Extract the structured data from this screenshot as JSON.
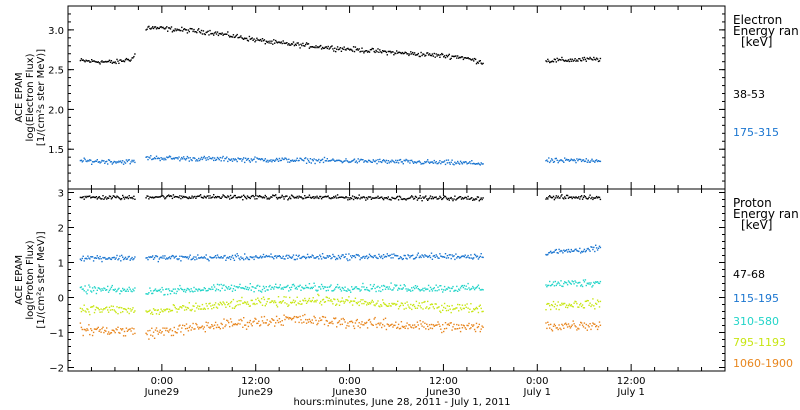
{
  "chart_data": [
    {
      "type": "scatter",
      "ylabel_lines": [
        "ACE EPAM",
        "log(Electron Flux)",
        "[1/(cm²s ster MeV)]"
      ],
      "legend_title_lines": [
        "Electron",
        "Energy ran",
        "[keV]"
      ],
      "ylim": [
        1.0,
        3.3
      ],
      "yticks": [
        1.5,
        2.0,
        2.5,
        3.0
      ],
      "ytick_labels": [
        "1.5",
        "2.0",
        "2.5",
        "3.0"
      ],
      "grid": false,
      "legend_position": "right",
      "gaps": [
        [
          -3.5,
          -2.2
        ],
        [
          41.0,
          49.0
        ]
      ],
      "series": [
        {
          "name": "38-53",
          "color": "#000000",
          "points": [
            [
              -10.5,
              2.62
            ],
            [
              -6,
              2.6
            ],
            [
              -3.8,
              2.65
            ],
            [
              -1.9,
              3.04
            ],
            [
              6,
              2.98
            ],
            [
              14,
              2.85
            ],
            [
              22,
              2.78
            ],
            [
              30,
              2.72
            ],
            [
              38,
              2.67
            ],
            [
              41,
              2.6
            ],
            [
              49,
              2.62
            ],
            [
              56,
              2.64
            ]
          ]
        },
        {
          "name": "175-315",
          "color": "#1a75d0",
          "points": [
            [
              -10.5,
              1.36
            ],
            [
              -3.8,
              1.35
            ],
            [
              -1.9,
              1.4
            ],
            [
              10,
              1.38
            ],
            [
              25,
              1.36
            ],
            [
              41,
              1.33
            ],
            [
              49,
              1.36
            ],
            [
              56,
              1.37
            ]
          ]
        }
      ]
    },
    {
      "type": "scatter",
      "ylabel_lines": [
        "ACE EPAM",
        "log(Proton Flux)",
        "[1/(cm²s ster MeV)]"
      ],
      "legend_title_lines": [
        "Proton",
        "Energy ran",
        "[keV]"
      ],
      "ylim": [
        -2.1,
        3.1
      ],
      "yticks": [
        -2,
        -1,
        0,
        1,
        2,
        3
      ],
      "ytick_labels": [
        "−2",
        "−1",
        "0",
        "1",
        "2",
        "3"
      ],
      "grid": false,
      "legend_position": "right",
      "gaps": [
        [
          -3.5,
          -2.2
        ],
        [
          41.0,
          49.0
        ]
      ],
      "series": [
        {
          "name": "47-68",
          "color": "#000000",
          "points": [
            [
              -10.5,
              2.88
            ],
            [
              -3.8,
              2.87
            ],
            [
              -1.9,
              2.9
            ],
            [
              20,
              2.88
            ],
            [
              41,
              2.85
            ],
            [
              49,
              2.88
            ],
            [
              56,
              2.88
            ]
          ]
        },
        {
          "name": "115-195",
          "color": "#1a75d0",
          "points": [
            [
              -10.5,
              1.15
            ],
            [
              -3.8,
              1.15
            ],
            [
              -1.9,
              1.15
            ],
            [
              20,
              1.18
            ],
            [
              41,
              1.2
            ],
            [
              49,
              1.3
            ],
            [
              56,
              1.42
            ]
          ]
        },
        {
          "name": "310-580",
          "color": "#22d4c8",
          "points": [
            [
              -10.5,
              0.25
            ],
            [
              -3.8,
              0.22
            ],
            [
              -1.9,
              0.2
            ],
            [
              10,
              0.3
            ],
            [
              25,
              0.3
            ],
            [
              41,
              0.28
            ],
            [
              49,
              0.4
            ],
            [
              56,
              0.45
            ]
          ]
        },
        {
          "name": "795-1193",
          "color": "#c8e614",
          "points": [
            [
              -10.5,
              -0.3
            ],
            [
              -3.8,
              -0.35
            ],
            [
              -1.9,
              -0.4
            ],
            [
              10,
              -0.15
            ],
            [
              20,
              -0.05
            ],
            [
              30,
              -0.2
            ],
            [
              41,
              -0.3
            ],
            [
              49,
              -0.2
            ],
            [
              56,
              -0.15
            ]
          ]
        },
        {
          "name": "1060-1900",
          "color": "#e8861e",
          "points": [
            [
              -10.5,
              -0.9
            ],
            [
              -3.8,
              -0.95
            ],
            [
              -1.9,
              -1.0
            ],
            [
              8,
              -0.75
            ],
            [
              16,
              -0.6
            ],
            [
              28,
              -0.75
            ],
            [
              41,
              -0.85
            ],
            [
              49,
              -0.8
            ],
            [
              56,
              -0.75
            ]
          ]
        }
      ]
    }
  ],
  "x_axis": {
    "range_hours": [
      -12,
      72
    ],
    "ticks": [
      {
        "h": 0,
        "time": "0:00",
        "day": "June29"
      },
      {
        "h": 12,
        "time": "12:00",
        "day": "June29"
      },
      {
        "h": 24,
        "time": "0:00",
        "day": "June30"
      },
      {
        "h": 36,
        "time": "12:00",
        "day": "June30"
      },
      {
        "h": 48,
        "time": "0:00",
        "day": "July 1"
      },
      {
        "h": 60,
        "time": "12:00",
        "day": "July 1"
      }
    ],
    "minor_step_hours": 3,
    "title": "hours:minutes, June 28, 2011 - July  1, 2011"
  }
}
